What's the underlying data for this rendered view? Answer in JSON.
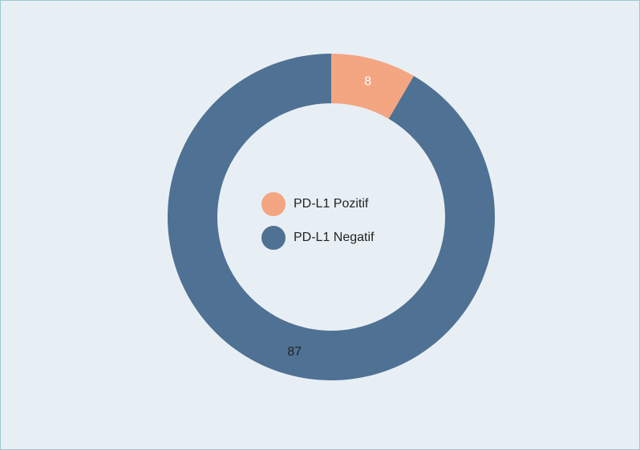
{
  "chart_data": {
    "type": "donut",
    "categories": [
      "PD-L1 Pozitif",
      "PD-L1 Negatif"
    ],
    "series": [
      {
        "values": [
          8,
          87
        ],
        "colors": [
          "#f4a582",
          "#4f7194"
        ]
      }
    ],
    "legend": "center"
  }
}
